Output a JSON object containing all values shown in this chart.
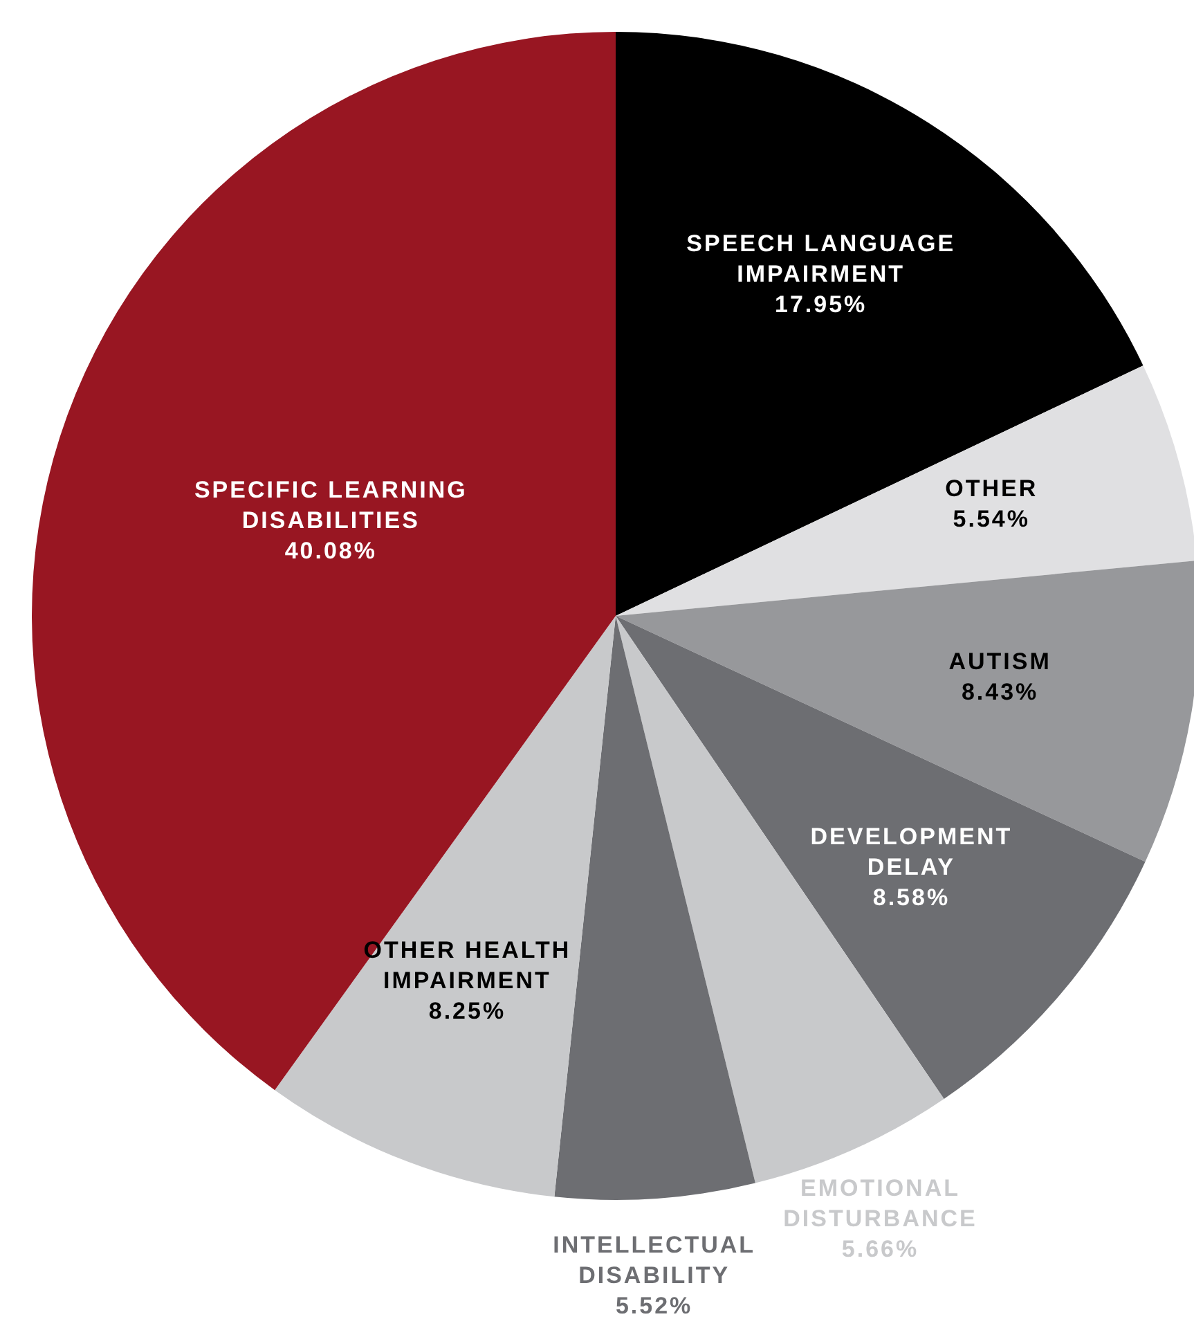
{
  "chart_data": {
    "type": "pie",
    "categories": [
      "SPEECH LANGUAGE IMPAIRMENT",
      "OTHER",
      "AUTISM",
      "DEVELOPMENT DELAY",
      "EMOTIONAL DISTURBANCE",
      "INTELLECTUAL DISABILITY",
      "OTHER HEALTH IMPAIRMENT",
      "SPECIFIC LEARNING DISABILITIES"
    ],
    "values": [
      17.95,
      5.54,
      8.43,
      8.58,
      5.66,
      5.52,
      8.25,
      40.08
    ],
    "colors": [
      "#000000",
      "#e0e0e2",
      "#97989b",
      "#6d6e72",
      "#c8c9cb",
      "#6d6e72",
      "#c8c9cb",
      "#981622"
    ],
    "value_labels": [
      "17.95%",
      "5.54%",
      "8.43%",
      "8.58%",
      "5.66%",
      "5.52%",
      "8.25%",
      "40.08%"
    ]
  }
}
